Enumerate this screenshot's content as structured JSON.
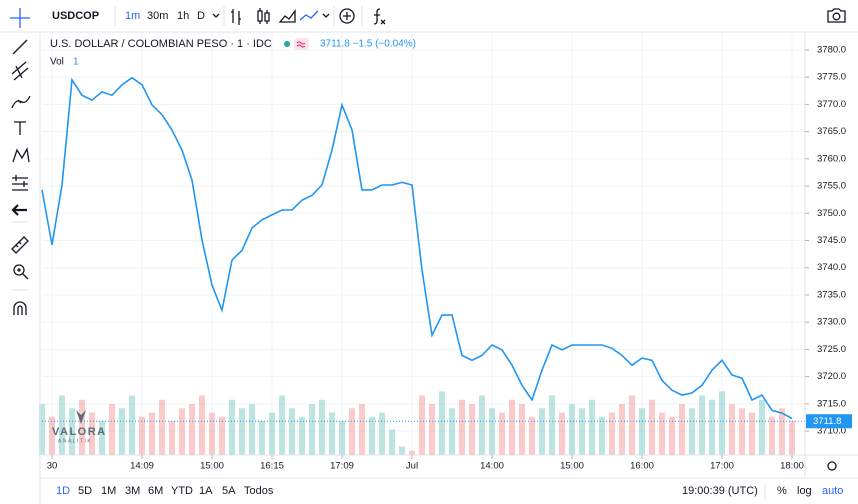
{
  "toolbar": {
    "symbol": "USDCOP",
    "intervals": [
      "1m",
      "30m",
      "1h",
      "D"
    ]
  },
  "logo": {
    "name": "VALORA",
    "tagline": "ANALITIK"
  },
  "bottom_bar": {
    "ranges": [
      "1D",
      "5D",
      "1M",
      "3M",
      "6M",
      "YTD",
      "1A",
      "5A",
      "Todos"
    ],
    "clock": "19:00:39 (UTC)",
    "options": [
      "%",
      "log",
      "auto"
    ]
  },
  "chart_data": {
    "type": "line",
    "title": "U.S. DOLLAR / COLOMBIAN PESO · 1 · IDC",
    "quote": "3711.8 −1.5 (−0.04%)",
    "volume_label": "Vol",
    "volume_setting": "1",
    "color": "#2196f3",
    "x": [
      0,
      1,
      2,
      3,
      4,
      5,
      6,
      7,
      8,
      9,
      10,
      11,
      12,
      13,
      14,
      15,
      16,
      17,
      18,
      19,
      20,
      21,
      22,
      23,
      24,
      25,
      26,
      27,
      28,
      29,
      30,
      31,
      32,
      33,
      34,
      35,
      36,
      37,
      38,
      39,
      40,
      41,
      42,
      43,
      44,
      45,
      46,
      47,
      48,
      49,
      50,
      51,
      52,
      53,
      54,
      55,
      56,
      57,
      58,
      59,
      60,
      61,
      62,
      63,
      64,
      65,
      66,
      67,
      68,
      69,
      70,
      71,
      72,
      73,
      74,
      75
    ],
    "values": [
      3754.3,
      3744.2,
      3755.2,
      3774.5,
      3771.7,
      3770.8,
      3772.3,
      3771.7,
      3773.6,
      3774.9,
      3773.6,
      3769.9,
      3768.1,
      3765.3,
      3761.6,
      3756.1,
      3745.1,
      3736.8,
      3732.2,
      3741.4,
      3743.2,
      3747.3,
      3748.8,
      3749.7,
      3750.6,
      3750.6,
      3752.4,
      3753.3,
      3755.2,
      3761.6,
      3769.9,
      3765.3,
      3754.3,
      3754.3,
      3755.2,
      3755.2,
      3755.7,
      3755.2,
      3739.6,
      3727.6,
      3731.3,
      3731.3,
      3723.9,
      3723.0,
      3723.9,
      3725.8,
      3724.9,
      3722.1,
      3718.4,
      3715.7,
      3721.2,
      3725.8,
      3724.9,
      3725.8,
      3725.8,
      3725.8,
      3725.8,
      3725.2,
      3723.9,
      3722.1,
      3723.4,
      3723.0,
      3719.3,
      3717.5,
      3716.6,
      3717.0,
      3718.4,
      3721.2,
      3723.0,
      3720.3,
      3719.7,
      3715.7,
      3716.6,
      3713.8,
      3713.3,
      3712.3
    ],
    "volume": [
      60,
      45,
      70,
      55,
      65,
      50,
      40,
      60,
      55,
      70,
      45,
      50,
      65,
      40,
      55,
      60,
      70,
      50,
      45,
      65,
      55,
      60,
      40,
      50,
      70,
      55,
      45,
      60,
      65,
      50,
      40,
      55,
      60,
      45,
      50,
      30,
      10,
      5,
      70,
      60,
      75,
      55,
      65,
      60,
      70,
      55,
      50,
      65,
      60,
      45,
      55,
      70,
      50,
      60,
      55,
      65,
      45,
      50,
      60,
      70,
      55,
      65,
      50,
      45,
      60,
      55,
      70,
      65,
      75,
      60,
      55,
      50,
      65,
      45,
      55,
      40
    ],
    "last_price": 3711.8,
    "xlim": [
      0,
      76.3
    ],
    "xticks": [
      {
        "value": 1,
        "label": "30"
      },
      {
        "value": 10,
        "label": "14:09"
      },
      {
        "value": 17,
        "label": "15:00"
      },
      {
        "value": 23,
        "label": "16:15"
      },
      {
        "value": 30,
        "label": "17:09"
      },
      {
        "value": 37,
        "label": "Jul"
      },
      {
        "value": 45,
        "label": "14:00"
      },
      {
        "value": 53,
        "label": "15:00"
      },
      {
        "value": 60,
        "label": "16:00"
      },
      {
        "value": 68,
        "label": "17:00"
      },
      {
        "value": 75,
        "label": "18:00"
      }
    ],
    "ylim": [
      3705.6,
      3783.3
    ],
    "yticks": [
      {
        "value": 3710,
        "label": "3710.0"
      },
      {
        "value": 3715,
        "label": "3715.0"
      },
      {
        "value": 3720,
        "label": "3720.0"
      },
      {
        "value": 3725,
        "label": "3725.0"
      },
      {
        "value": 3730,
        "label": "3730.0"
      },
      {
        "value": 3735,
        "label": "3735.0"
      },
      {
        "value": 3740,
        "label": "3740.0"
      },
      {
        "value": 3745,
        "label": "3745.0"
      },
      {
        "value": 3750,
        "label": "3750.0"
      },
      {
        "value": 3755,
        "label": "3755.0"
      },
      {
        "value": 3760,
        "label": "3760.0"
      },
      {
        "value": 3765,
        "label": "3765.0"
      },
      {
        "value": 3770,
        "label": "3770.0"
      },
      {
        "value": 3775,
        "label": "3775.0"
      },
      {
        "value": 3780,
        "label": "3780.0"
      }
    ],
    "grid": true
  }
}
